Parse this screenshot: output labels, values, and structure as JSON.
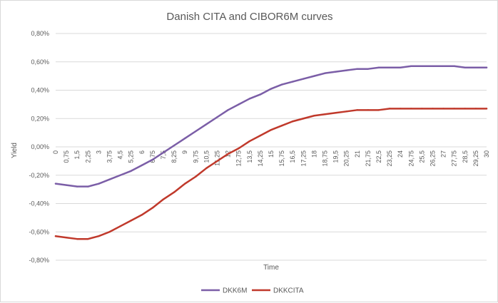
{
  "chart_data": {
    "type": "line",
    "title": "Danish CITA and CIBOR6M curves",
    "xlabel": "Time",
    "ylabel": "Yield",
    "ylim": [
      -0.008,
      0.008
    ],
    "y_ticks": [
      0.008,
      0.006,
      0.004,
      0.002,
      0.0,
      -0.002,
      -0.004,
      -0.006,
      -0.008
    ],
    "y_tick_labels": [
      "0,80%",
      "0,60%",
      "0,40%",
      "0,20%",
      "0,00%",
      "-0,20%",
      "-0,40%",
      "-0,60%",
      "-0,80%"
    ],
    "xlim": [
      0,
      30
    ],
    "x_ticks": [
      0,
      0.75,
      1.5,
      2.25,
      3,
      3.75,
      4.5,
      5.25,
      6,
      6.75,
      7.5,
      8.25,
      9,
      9.75,
      10.5,
      11.25,
      12,
      12.75,
      13.5,
      14.25,
      15,
      15.75,
      16.5,
      17.25,
      18,
      18.75,
      19.5,
      20.25,
      21,
      21.75,
      22.5,
      23.25,
      24,
      24.75,
      25.5,
      26.25,
      27,
      27.75,
      28.5,
      29.25,
      30
    ],
    "x_tick_labels": [
      "0",
      "0,75",
      "1,5",
      "2,25",
      "3",
      "3,75",
      "4,5",
      "5,25",
      "6",
      "6,75",
      "7,5",
      "8,25",
      "9",
      "9,75",
      "10,5",
      "11,25",
      "12",
      "12,75",
      "13,5",
      "14,25",
      "15",
      "15,75",
      "16,5",
      "17,25",
      "18",
      "18,75",
      "19,5",
      "20,25",
      "21",
      "21,75",
      "22,5",
      "23,25",
      "24",
      "24,75",
      "25,5",
      "26,25",
      "27",
      "27,75",
      "28,5",
      "29,25",
      "30"
    ],
    "grid": true,
    "legend_position": "bottom",
    "series": [
      {
        "name": "DKK6M",
        "color": "#7b5ea7",
        "x": [
          0,
          0.75,
          1.5,
          2.25,
          3,
          3.75,
          4.5,
          5.25,
          6,
          6.75,
          7.5,
          8.25,
          9,
          9.75,
          10.5,
          11.25,
          12,
          12.75,
          13.5,
          14.25,
          15,
          15.75,
          16.5,
          17.25,
          18,
          18.75,
          19.5,
          20.25,
          21,
          21.75,
          22.5,
          23.25,
          24,
          24.75,
          25.5,
          26.25,
          27,
          27.75,
          28.5,
          29.25,
          30
        ],
        "values": [
          -0.0026,
          -0.0027,
          -0.0028,
          -0.0028,
          -0.0026,
          -0.0023,
          -0.002,
          -0.0017,
          -0.0013,
          -0.0009,
          -0.0004,
          0.0001,
          0.0006,
          0.0011,
          0.0016,
          0.0021,
          0.0026,
          0.003,
          0.0034,
          0.0037,
          0.0041,
          0.0044,
          0.0046,
          0.0048,
          0.005,
          0.0052,
          0.0053,
          0.0054,
          0.0055,
          0.0055,
          0.0056,
          0.0056,
          0.0056,
          0.0057,
          0.0057,
          0.0057,
          0.0057,
          0.0057,
          0.0056,
          0.0056,
          0.0056
        ]
      },
      {
        "name": "DKKCITA",
        "color": "#c0392b",
        "x": [
          0,
          0.75,
          1.5,
          2.25,
          3,
          3.75,
          4.5,
          5.25,
          6,
          6.75,
          7.5,
          8.25,
          9,
          9.75,
          10.5,
          11.25,
          12,
          12.75,
          13.5,
          14.25,
          15,
          15.75,
          16.5,
          17.25,
          18,
          18.75,
          19.5,
          20.25,
          21,
          21.75,
          22.5,
          23.25,
          24,
          24.75,
          25.5,
          26.25,
          27,
          27.75,
          28.5,
          29.25,
          30
        ],
        "values": [
          -0.0063,
          -0.0064,
          -0.0065,
          -0.0065,
          -0.0063,
          -0.006,
          -0.0056,
          -0.0052,
          -0.0048,
          -0.0043,
          -0.0037,
          -0.0032,
          -0.0026,
          -0.0021,
          -0.0015,
          -0.001,
          -0.0005,
          -0.0001,
          0.0004,
          0.0008,
          0.0012,
          0.0015,
          0.0018,
          0.002,
          0.0022,
          0.0023,
          0.0024,
          0.0025,
          0.0026,
          0.0026,
          0.0026,
          0.0027,
          0.0027,
          0.0027,
          0.0027,
          0.0027,
          0.0027,
          0.0027,
          0.0027,
          0.0027,
          0.0027
        ]
      }
    ]
  }
}
